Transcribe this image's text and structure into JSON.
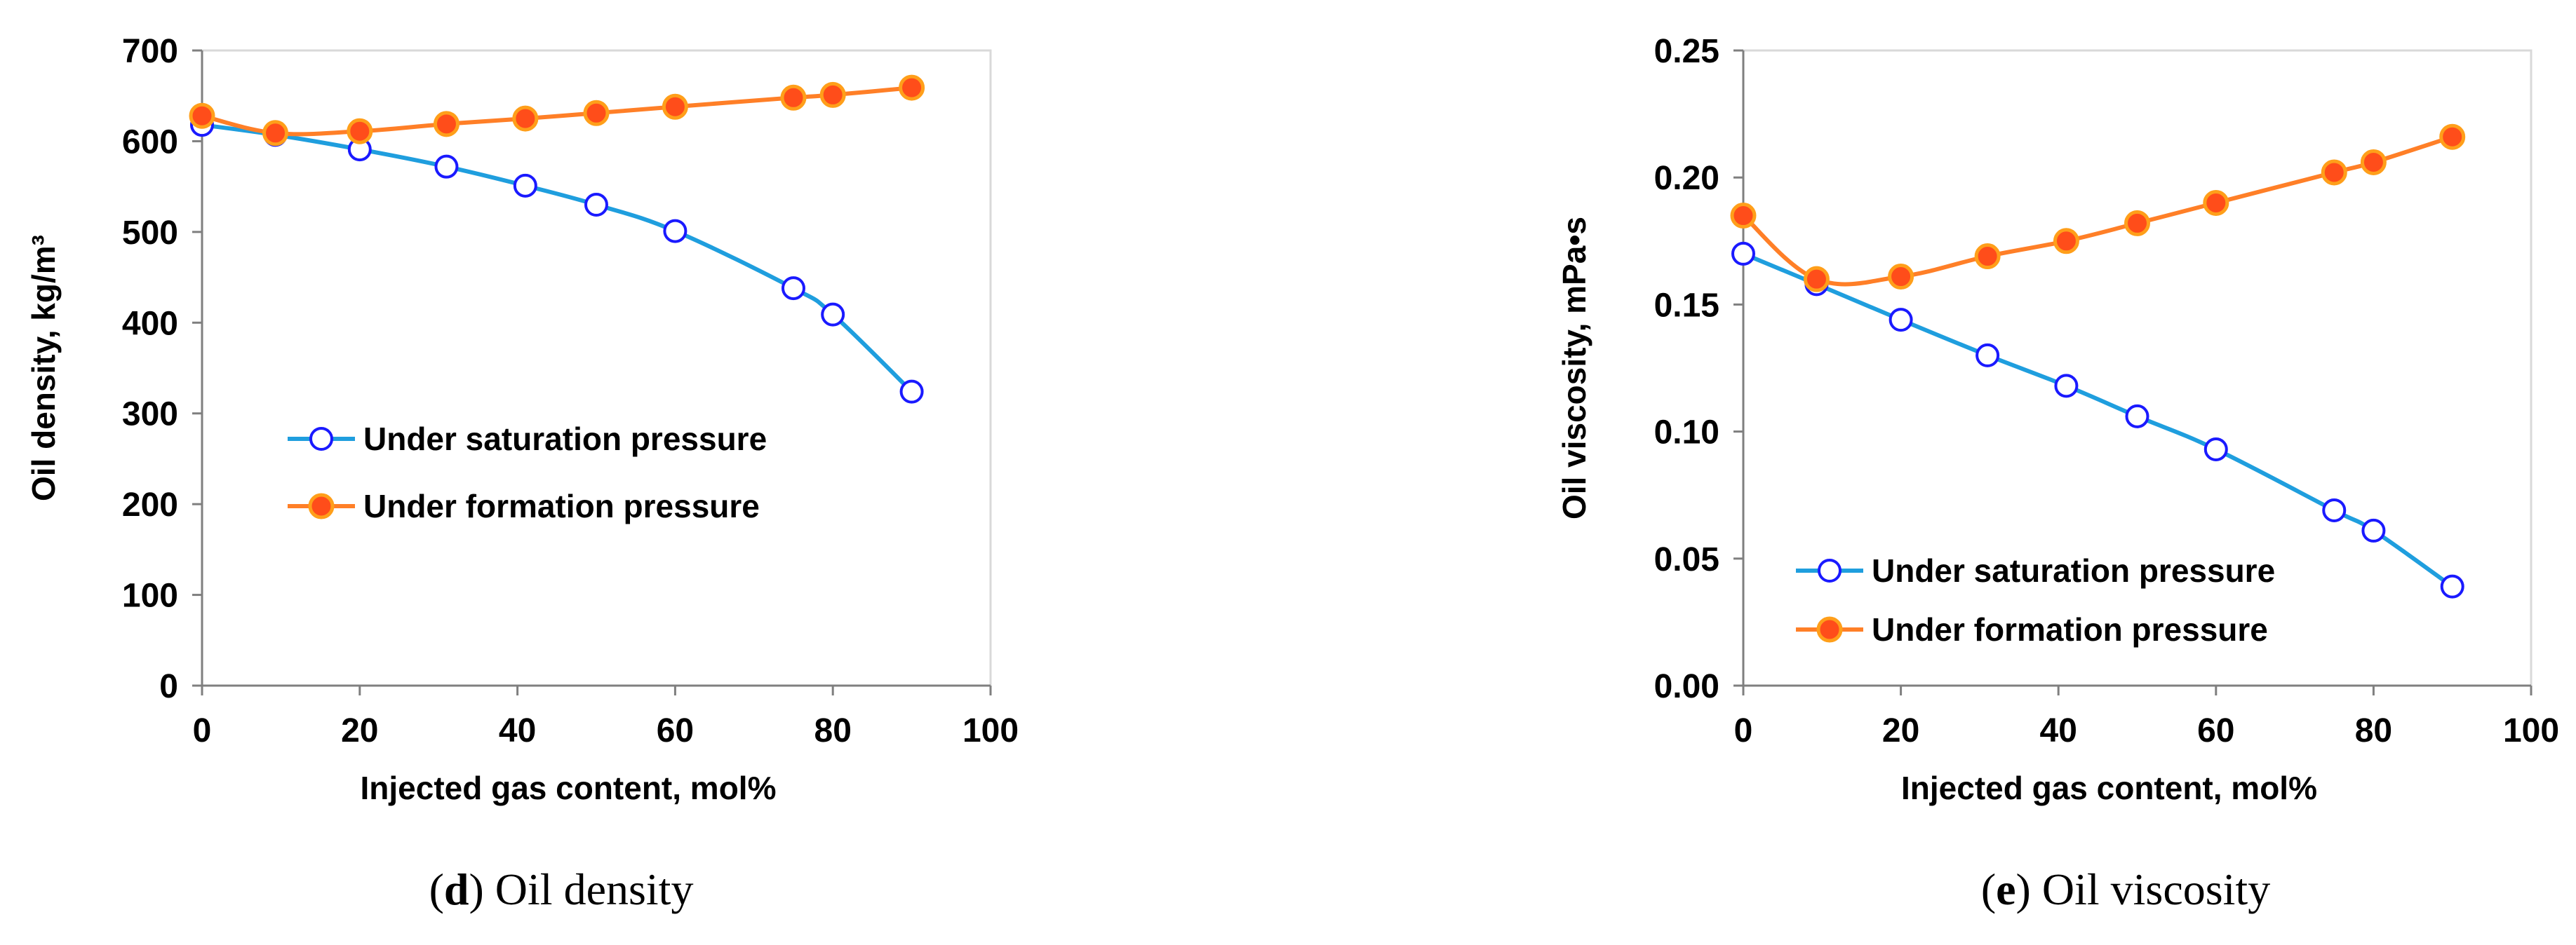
{
  "chart_data": [
    {
      "type": "line",
      "caption_letter": "d",
      "caption_text": " Oil density",
      "xlabel": "Injected gas content, mol%",
      "ylabel": "Oil density, kg/m³",
      "xlim": [
        0,
        100
      ],
      "ylim": [
        0,
        700
      ],
      "xticks": [
        0,
        20,
        40,
        60,
        80,
        100
      ],
      "yticks": [
        0,
        100,
        200,
        300,
        400,
        500,
        600,
        700
      ],
      "legend_position": "center-left",
      "grid": false,
      "series": [
        {
          "name": "Under saturation pressure",
          "color": "#1f9ede",
          "marker": "open-circle",
          "x": [
            0,
            9.3,
            20,
            31,
            41,
            50,
            60,
            75,
            80,
            90
          ],
          "y": [
            618,
            607,
            591,
            572,
            551,
            530,
            501,
            438,
            409,
            324
          ]
        },
        {
          "name": "Under formation pressure",
          "color": "#ff7f27",
          "marker": "filled-circle",
          "x": [
            0,
            9.3,
            20,
            31,
            41,
            50,
            60,
            75,
            80,
            90
          ],
          "y": [
            628,
            609,
            611,
            619,
            625,
            631,
            638,
            648,
            651,
            659
          ]
        }
      ]
    },
    {
      "type": "line",
      "caption_letter": "e",
      "caption_text": " Oil viscosity",
      "xlabel": "Injected gas content, mol%",
      "ylabel": "Oil viscosity, mPa•s",
      "xlim": [
        0,
        100
      ],
      "ylim": [
        0,
        0.25
      ],
      "xticks": [
        0,
        20,
        40,
        60,
        80,
        100
      ],
      "yticks": [
        0,
        0.05,
        0.1,
        0.15,
        0.2,
        0.25
      ],
      "ytick_labels": [
        "0.00",
        "0.05",
        "0.10",
        "0.15",
        "0.20",
        "0.25"
      ],
      "legend_position": "bottom-left",
      "grid": false,
      "series": [
        {
          "name": "Under saturation pressure",
          "color": "#1f9ede",
          "marker": "open-circle",
          "x": [
            0,
            9.3,
            20,
            31,
            41,
            50,
            60,
            75,
            80,
            90
          ],
          "y": [
            0.17,
            0.158,
            0.144,
            0.13,
            0.118,
            0.106,
            0.093,
            0.069,
            0.061,
            0.039
          ]
        },
        {
          "name": "Under formation pressure",
          "color": "#ff7f27",
          "marker": "filled-circle",
          "x": [
            0,
            9.3,
            20,
            31,
            41,
            50,
            60,
            75,
            80,
            90
          ],
          "y": [
            0.185,
            0.16,
            0.161,
            0.169,
            0.175,
            0.182,
            0.19,
            0.202,
            0.206,
            0.216
          ]
        }
      ]
    }
  ]
}
